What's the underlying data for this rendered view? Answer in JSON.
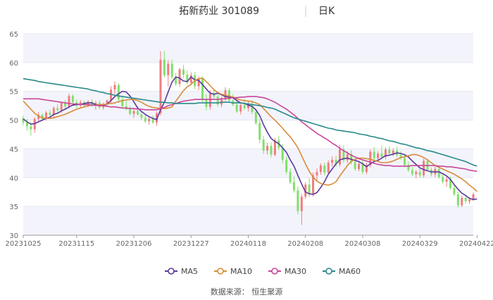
{
  "chart_data": {
    "type": "candlestick",
    "title": "拓新药业 301089",
    "period_label": "日K",
    "ylim": [
      30,
      65
    ],
    "yticks": [
      30,
      35,
      40,
      45,
      50,
      55,
      60,
      65
    ],
    "x_tick_labels": [
      "20231025",
      "20231115",
      "20231206",
      "20231227",
      "20240118",
      "20240208",
      "20240308",
      "20240329",
      "20240422"
    ],
    "x_tick_index": [
      0,
      14,
      29,
      44,
      59,
      74,
      89,
      104,
      119
    ],
    "up_color": "#f27b7f",
    "down_color": "#7fe06b",
    "band_color": "#f3f4fb",
    "candles_ohlc": [
      [
        50.3,
        50.8,
        49.1,
        49.6
      ],
      [
        49.6,
        50.2,
        48.2,
        48.9
      ],
      [
        48.9,
        49.7,
        47.3,
        48.4
      ],
      [
        48.4,
        50.5,
        47.8,
        50.2
      ],
      [
        50.2,
        51.4,
        49.8,
        50.9
      ],
      [
        50.9,
        51.2,
        49.9,
        50.2
      ],
      [
        50.2,
        51.6,
        49.9,
        51.3
      ],
      [
        51.3,
        51.8,
        50.4,
        50.9
      ],
      [
        50.9,
        52.4,
        50.5,
        52.1
      ],
      [
        52.1,
        52.8,
        51.3,
        51.7
      ],
      [
        51.7,
        53.2,
        51.2,
        53.0
      ],
      [
        53.0,
        53.5,
        52.0,
        52.4
      ],
      [
        52.4,
        54.6,
        52.0,
        54.2
      ],
      [
        54.2,
        54.5,
        52.7,
        53.1
      ],
      [
        53.1,
        53.6,
        52.1,
        52.6
      ],
      [
        52.6,
        53.5,
        52.2,
        53.1
      ],
      [
        53.1,
        53.4,
        52.2,
        52.6
      ],
      [
        52.6,
        53.5,
        52.2,
        53.2
      ],
      [
        53.2,
        53.6,
        52.3,
        52.5
      ],
      [
        52.5,
        53.3,
        51.8,
        53.0
      ],
      [
        53.0,
        53.4,
        51.9,
        52.2
      ],
      [
        52.2,
        53.0,
        51.8,
        52.8
      ],
      [
        52.8,
        53.6,
        52.3,
        53.4
      ],
      [
        53.4,
        55.9,
        53.0,
        55.3
      ],
      [
        55.3,
        56.7,
        54.5,
        56.1
      ],
      [
        56.1,
        56.4,
        53.0,
        53.6
      ],
      [
        53.6,
        54.1,
        52.0,
        52.4
      ],
      [
        52.4,
        53.3,
        51.7,
        51.9
      ],
      [
        51.9,
        52.5,
        50.8,
        51.1
      ],
      [
        51.1,
        52.0,
        50.4,
        51.6
      ],
      [
        51.6,
        52.4,
        50.8,
        51.0
      ],
      [
        51.0,
        51.6,
        50.0,
        50.4
      ],
      [
        50.4,
        51.0,
        49.5,
        49.8
      ],
      [
        49.8,
        50.6,
        49.2,
        50.2
      ],
      [
        50.2,
        50.8,
        49.3,
        49.6
      ],
      [
        49.6,
        51.5,
        49.0,
        51.2
      ],
      [
        51.2,
        62.0,
        50.8,
        60.5
      ],
      [
        60.5,
        62.0,
        57.4,
        57.8
      ],
      [
        57.8,
        60.4,
        55.8,
        59.8
      ],
      [
        59.8,
        60.5,
        57.1,
        57.5
      ],
      [
        57.5,
        58.2,
        55.9,
        56.3
      ],
      [
        56.3,
        59.1,
        55.8,
        58.8
      ],
      [
        58.8,
        59.6,
        57.3,
        57.9
      ],
      [
        57.9,
        58.6,
        56.2,
        56.5
      ],
      [
        56.5,
        58.3,
        56.1,
        57.8
      ],
      [
        57.8,
        58.4,
        55.4,
        55.9
      ],
      [
        55.9,
        57.6,
        55.2,
        57.2
      ],
      [
        57.2,
        57.6,
        53.1,
        53.5
      ],
      [
        53.5,
        54.5,
        51.7,
        52.3
      ],
      [
        52.3,
        55.2,
        51.8,
        54.6
      ],
      [
        54.6,
        55.5,
        53.7,
        54.1
      ],
      [
        54.1,
        54.6,
        52.3,
        52.7
      ],
      [
        52.7,
        54.1,
        52.2,
        53.8
      ],
      [
        53.8,
        55.7,
        53.3,
        55.2
      ],
      [
        55.2,
        55.6,
        53.1,
        53.4
      ],
      [
        53.4,
        54.5,
        52.4,
        52.7
      ],
      [
        52.7,
        53.4,
        51.2,
        51.5
      ],
      [
        51.5,
        52.9,
        51.0,
        52.6
      ],
      [
        52.6,
        53.6,
        51.8,
        52.1
      ],
      [
        52.1,
        53.2,
        51.5,
        52.9
      ],
      [
        52.9,
        53.5,
        51.0,
        51.4
      ],
      [
        51.4,
        51.8,
        49.2,
        49.5
      ],
      [
        49.5,
        50.2,
        46.0,
        46.6
      ],
      [
        46.6,
        47.3,
        44.1,
        44.7
      ],
      [
        44.7,
        46.1,
        44.0,
        45.5
      ],
      [
        45.5,
        46.1,
        43.5,
        44.0
      ],
      [
        44.0,
        46.9,
        43.7,
        46.5
      ],
      [
        46.5,
        47.2,
        44.8,
        45.2
      ],
      [
        45.2,
        45.8,
        42.5,
        43.1
      ],
      [
        43.1,
        43.7,
        40.6,
        41.0
      ],
      [
        41.0,
        41.6,
        38.9,
        39.2
      ],
      [
        39.2,
        40.2,
        37.4,
        37.8
      ],
      [
        37.8,
        38.5,
        33.6,
        34.2
      ],
      [
        34.2,
        37.2,
        31.8,
        36.7
      ],
      [
        36.7,
        39.2,
        36.3,
        38.8
      ],
      [
        38.8,
        39.9,
        36.6,
        37.1
      ],
      [
        37.1,
        40.9,
        36.7,
        40.4
      ],
      [
        40.4,
        41.6,
        39.3,
        41.0
      ],
      [
        41.0,
        42.5,
        40.5,
        42.1
      ],
      [
        42.1,
        42.6,
        40.4,
        40.9
      ],
      [
        40.9,
        43.0,
        40.5,
        42.6
      ],
      [
        42.6,
        43.7,
        41.9,
        43.1
      ],
      [
        43.1,
        43.8,
        41.9,
        42.3
      ],
      [
        42.3,
        45.7,
        41.9,
        44.9
      ],
      [
        44.9,
        45.6,
        42.6,
        43.0
      ],
      [
        43.0,
        44.6,
        42.5,
        44.1
      ],
      [
        44.1,
        44.8,
        42.3,
        42.7
      ],
      [
        42.7,
        43.4,
        41.2,
        41.5
      ],
      [
        41.5,
        42.9,
        41.1,
        42.4
      ],
      [
        42.4,
        43.0,
        40.6,
        41.0
      ],
      [
        41.0,
        42.6,
        40.6,
        42.2
      ],
      [
        42.2,
        44.9,
        41.8,
        44.5
      ],
      [
        44.5,
        45.3,
        43.0,
        43.4
      ],
      [
        43.4,
        44.6,
        42.9,
        44.2
      ],
      [
        44.2,
        45.6,
        43.2,
        43.6
      ],
      [
        43.6,
        45.3,
        43.2,
        44.9
      ],
      [
        44.9,
        45.5,
        43.8,
        44.2
      ],
      [
        44.2,
        45.1,
        43.7,
        44.7
      ],
      [
        44.7,
        45.4,
        43.6,
        43.9
      ],
      [
        43.9,
        44.6,
        43.1,
        43.4
      ],
      [
        43.4,
        43.9,
        41.8,
        42.2
      ],
      [
        42.2,
        42.8,
        41.0,
        41.3
      ],
      [
        41.3,
        41.9,
        40.3,
        40.6
      ],
      [
        40.6,
        41.3,
        39.9,
        41.0
      ],
      [
        41.0,
        41.5,
        40.0,
        40.4
      ],
      [
        40.4,
        43.3,
        40.0,
        42.9
      ],
      [
        42.9,
        43.3,
        41.1,
        41.4
      ],
      [
        41.4,
        41.8,
        40.2,
        40.6
      ],
      [
        40.6,
        41.9,
        40.1,
        41.5
      ],
      [
        41.5,
        41.9,
        39.8,
        40.1
      ],
      [
        40.1,
        40.6,
        38.9,
        39.3
      ],
      [
        39.3,
        40.1,
        38.4,
        39.7
      ],
      [
        39.7,
        40.2,
        37.9,
        38.2
      ],
      [
        38.2,
        38.7,
        36.8,
        37.1
      ],
      [
        37.1,
        37.6,
        34.8,
        35.2
      ],
      [
        35.2,
        36.9,
        34.9,
        36.5
      ],
      [
        36.5,
        37.0,
        35.5,
        35.9
      ],
      [
        35.9,
        36.6,
        35.4,
        36.2
      ],
      [
        36.2,
        37.4,
        35.9,
        37.1
      ]
    ],
    "series": [
      {
        "name": "MA5",
        "color": "#5b3a9c",
        "values": [
          50.2,
          49.7,
          49.3,
          49.4,
          49.7,
          50.0,
          50.3,
          50.5,
          51.0,
          51.2,
          51.6,
          51.9,
          52.3,
          52.6,
          52.7,
          52.7,
          52.9,
          53.0,
          53.0,
          52.7,
          52.6,
          52.5,
          52.8,
          53.4,
          54.1,
          54.6,
          55.0,
          54.9,
          54.2,
          53.2,
          52.1,
          51.5,
          51.0,
          50.6,
          50.3,
          50.1,
          51.8,
          53.1,
          54.9,
          56.6,
          57.5,
          57.3,
          56.8,
          56.7,
          57.5,
          57.0,
          56.9,
          56.2,
          55.4,
          54.7,
          54.5,
          54.7,
          54.4,
          54.1,
          54.0,
          53.9,
          53.4,
          53.0,
          52.9,
          52.6,
          52.4,
          51.8,
          50.8,
          49.2,
          47.9,
          46.8,
          46.3,
          45.9,
          45.2,
          44.4,
          43.1,
          42.0,
          40.4,
          38.9,
          37.5,
          37.2,
          37.1,
          37.4,
          38.3,
          39.3,
          40.6,
          41.5,
          42.4,
          43.1,
          43.3,
          43.4,
          43.2,
          43.0,
          42.8,
          42.4,
          41.9,
          42.4,
          42.8,
          43.0,
          43.4,
          43.8,
          43.9,
          44.1,
          44.3,
          44.2,
          44.0,
          43.6,
          42.9,
          42.3,
          41.7,
          41.4,
          41.2,
          41.0,
          41.0,
          41.0,
          40.7,
          40.3,
          39.7,
          38.8,
          38.0,
          37.3,
          36.9,
          36.4,
          36.2,
          36.3
        ]
      },
      {
        "name": "MA10",
        "color": "#d98b3a",
        "values": [
          53.3,
          52.6,
          51.9,
          51.2,
          50.7,
          50.4,
          50.3,
          50.3,
          50.4,
          50.6,
          50.8,
          51.0,
          51.3,
          51.6,
          51.9,
          52.1,
          52.3,
          52.5,
          52.6,
          52.6,
          52.7,
          52.7,
          52.8,
          52.9,
          53.0,
          53.2,
          53.4,
          53.5,
          53.6,
          53.6,
          53.4,
          53.1,
          52.7,
          52.4,
          52.2,
          52.1,
          52.0,
          52.0,
          52.1,
          52.3,
          53.3,
          54.2,
          55.1,
          55.8,
          56.2,
          56.9,
          57.2,
          57.3,
          56.7,
          56.0,
          55.3,
          54.8,
          54.5,
          54.3,
          54.2,
          54.0,
          53.7,
          53.5,
          53.4,
          53.3,
          53.2,
          53.0,
          52.7,
          52.0,
          51.3,
          50.6,
          50.0,
          49.3,
          48.6,
          47.8,
          47.1,
          46.2,
          45.2,
          43.8,
          42.4,
          41.1,
          40.1,
          39.4,
          39.0,
          38.8,
          38.7,
          38.9,
          39.3,
          40.3,
          41.2,
          42.1,
          42.8,
          43.2,
          43.4,
          43.4,
          43.3,
          43.2,
          43.0,
          42.8,
          42.6,
          42.6,
          42.7,
          42.9,
          43.2,
          43.5,
          43.6,
          43.8,
          44.0,
          44.0,
          43.8,
          43.5,
          43.1,
          42.6,
          42.1,
          41.8,
          41.5,
          41.2,
          40.9,
          40.6,
          40.2,
          39.8,
          39.3,
          38.7,
          38.2,
          37.6
        ]
      },
      {
        "name": "MA30",
        "color": "#c8479a",
        "values": [
          53.7,
          53.7,
          53.7,
          53.7,
          53.7,
          53.6,
          53.5,
          53.4,
          53.3,
          53.2,
          53.1,
          53.0,
          52.9,
          52.8,
          52.8,
          52.7,
          52.7,
          52.7,
          52.6,
          52.6,
          52.5,
          52.5,
          52.4,
          52.3,
          52.3,
          52.2,
          52.1,
          52.1,
          52.0,
          52.0,
          51.9,
          51.9,
          51.8,
          51.8,
          51.8,
          51.8,
          52.0,
          52.2,
          52.5,
          52.7,
          52.9,
          53.1,
          53.3,
          53.4,
          53.5,
          53.6,
          53.6,
          53.6,
          53.6,
          53.6,
          53.6,
          53.6,
          53.7,
          53.7,
          53.8,
          53.9,
          53.9,
          54.0,
          54.0,
          54.1,
          54.1,
          54.1,
          54.0,
          53.9,
          53.7,
          53.4,
          53.1,
          52.7,
          52.3,
          51.9,
          51.4,
          50.9,
          50.3,
          49.7,
          49.2,
          48.7,
          48.2,
          47.7,
          47.3,
          46.9,
          46.5,
          46.0,
          45.6,
          45.1,
          44.7,
          44.3,
          43.9,
          43.6,
          43.3,
          43.1,
          42.9,
          42.7,
          42.5,
          42.3,
          42.2,
          42.1,
          42.1,
          42.0,
          42.0,
          42.0,
          42.0,
          42.0,
          42.1,
          42.1,
          42.1,
          42.1,
          42.1,
          42.1,
          42.1,
          42.0,
          42.0,
          41.9,
          41.9,
          41.8,
          41.7,
          41.6,
          41.5,
          41.3,
          41.2,
          41.1
        ]
      },
      {
        "name": "MA60",
        "color": "#2a8a8c",
        "values": [
          57.2,
          57.1,
          57.0,
          56.9,
          56.7,
          56.6,
          56.5,
          56.4,
          56.3,
          56.2,
          56.1,
          56.0,
          55.9,
          55.8,
          55.7,
          55.6,
          55.5,
          55.4,
          55.2,
          55.1,
          54.9,
          54.8,
          54.6,
          54.5,
          54.3,
          54.2,
          54.1,
          54.0,
          53.9,
          53.8,
          53.7,
          53.6,
          53.5,
          53.4,
          53.3,
          53.2,
          53.1,
          53.1,
          53.0,
          53.0,
          52.9,
          52.9,
          52.9,
          52.9,
          52.9,
          52.9,
          53.0,
          53.0,
          53.0,
          53.0,
          53.0,
          53.0,
          53.1,
          53.1,
          53.1,
          53.0,
          53.0,
          53.0,
          52.9,
          52.8,
          52.7,
          52.6,
          52.5,
          52.4,
          52.2,
          52.1,
          51.9,
          51.6,
          51.3,
          51.0,
          50.7,
          50.4,
          50.2,
          50.0,
          49.8,
          49.6,
          49.4,
          49.2,
          49.0,
          48.8,
          48.6,
          48.5,
          48.3,
          48.2,
          48.1,
          48.0,
          47.9,
          47.8,
          47.6,
          47.5,
          47.4,
          47.2,
          47.1,
          46.9,
          46.8,
          46.6,
          46.4,
          46.3,
          46.1,
          45.9,
          45.8,
          45.6,
          45.4,
          45.2,
          45.1,
          44.9,
          44.7,
          44.6,
          44.4,
          44.2,
          44.0,
          43.8,
          43.6,
          43.4,
          43.2,
          43.0,
          42.8,
          42.5,
          42.2,
          42.0
        ]
      }
    ]
  },
  "legend": {
    "items": [
      {
        "label": "MA5",
        "color": "#5b3a9c"
      },
      {
        "label": "MA10",
        "color": "#d98b3a"
      },
      {
        "label": "MA30",
        "color": "#c8479a"
      },
      {
        "label": "MA60",
        "color": "#2a8a8c"
      }
    ]
  },
  "footer": {
    "source_label": "数据来源：",
    "source_value": "恒生聚源"
  }
}
